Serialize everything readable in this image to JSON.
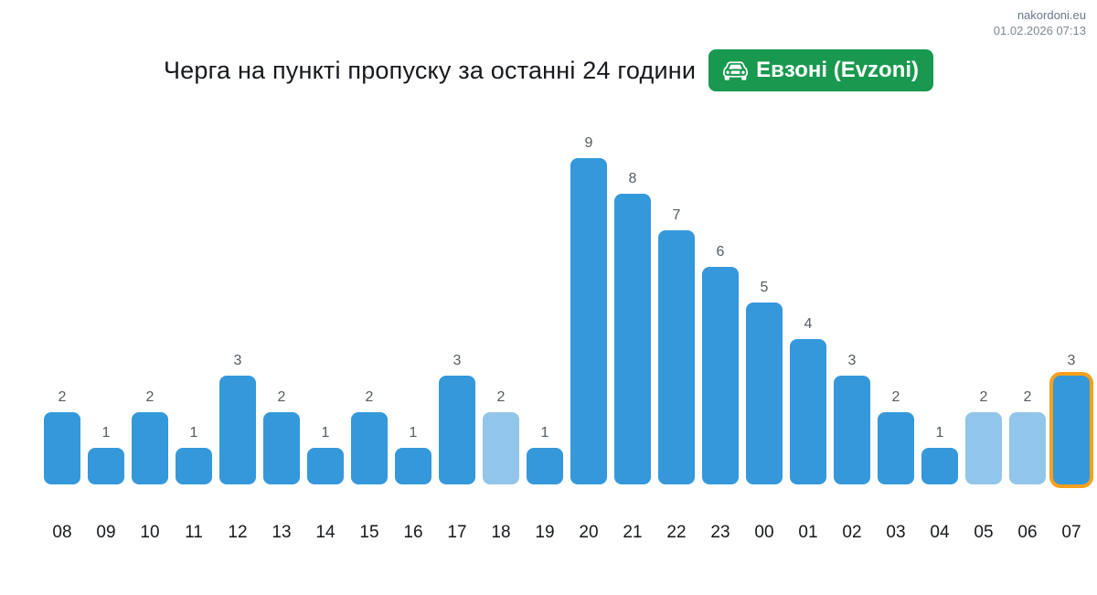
{
  "header": {
    "site": "nakordoni.eu",
    "timestamp": "01.02.2026 07:13"
  },
  "title": "Черга на пункті пропуску за останні 24 години",
  "badge": {
    "label": "Евзоні (Evzoni)",
    "icon": "car-front-icon",
    "background": "#18994f",
    "text_color": "#ffffff"
  },
  "chart_data": {
    "type": "bar",
    "title": "Черга на пункті пропуску за останні 24 години",
    "xlabel": "",
    "ylabel": "",
    "ylim": [
      0,
      9.5
    ],
    "grid": false,
    "legend": false,
    "value_labels_shown": true,
    "categories": [
      "08",
      "09",
      "10",
      "11",
      "12",
      "13",
      "14",
      "15",
      "16",
      "17",
      "18",
      "19",
      "20",
      "21",
      "22",
      "23",
      "00",
      "01",
      "02",
      "03",
      "04",
      "05",
      "06",
      "07"
    ],
    "values": [
      2,
      1,
      2,
      1,
      3,
      2,
      1,
      2,
      1,
      3,
      2,
      1,
      9,
      8,
      7,
      6,
      5,
      4,
      3,
      2,
      1,
      2,
      2,
      3
    ],
    "bar_styles": [
      "normal",
      "normal",
      "normal",
      "normal",
      "normal",
      "normal",
      "normal",
      "normal",
      "normal",
      "normal",
      "light",
      "normal",
      "normal",
      "normal",
      "normal",
      "normal",
      "normal",
      "normal",
      "normal",
      "normal",
      "normal",
      "light",
      "light",
      "highlighted"
    ],
    "colors": {
      "normal": "#3498db",
      "light": "#92c5ea",
      "highlighted_fill": "#3498db",
      "highlight_border": "#f7a01b",
      "value_label": "#555c64",
      "category_label": "#16191d"
    }
  }
}
